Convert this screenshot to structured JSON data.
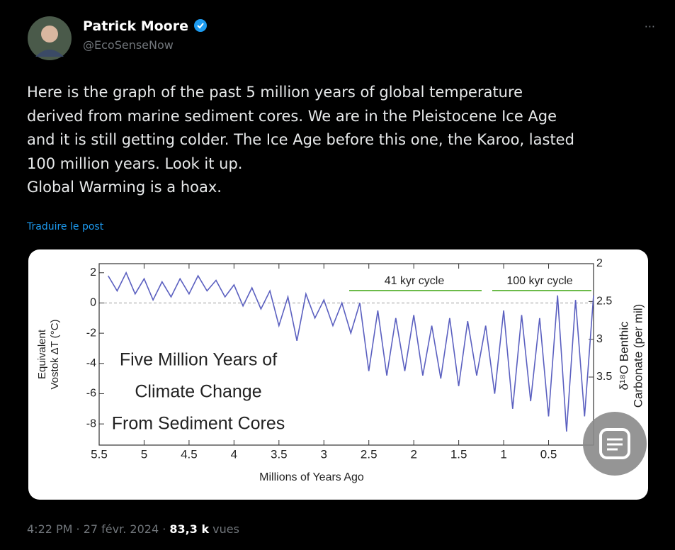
{
  "tweet": {
    "name": "Patrick Moore",
    "handle": "@EcoSenseNow",
    "more": "···",
    "text_lines": [
      "Here is the graph of the past 5 million years of global temperature",
      "derived from marine sediment cores. We are in the Pleistocene Ice Age",
      "and it is still getting colder. The Ice Age before this one, the Karoo, lasted",
      "100 million years. Look it up.",
      "Global Warming is a hoax."
    ],
    "translate": "Traduire le post",
    "timestamp": "4:22 PM · 27 févr. 2024 ·",
    "views": "83,3 k",
    "views_label": "vues"
  },
  "chart_data": {
    "type": "line",
    "title_lines": [
      "Five Million Years of",
      "Climate Change",
      "From Sediment Cores"
    ],
    "xlabel": "Millions of Years Ago",
    "ylabel_lines": [
      "Equivalent",
      "Vostok ΔT (°C)"
    ],
    "y2label_lines": [
      "δ¹⁸O Benthic",
      "Carbonate (per mil)"
    ],
    "annotations": [
      "41 kyr cycle",
      "100 kyr cycle"
    ],
    "color": "#5b60c0",
    "xlim": [
      5.5,
      0
    ],
    "xticks": [
      5.5,
      5,
      4.5,
      4,
      3.5,
      3,
      2.5,
      2,
      1.5,
      1,
      0.5
    ],
    "ylim": [
      -9.4,
      2.6
    ],
    "yticks": [
      2,
      0,
      -2,
      -4,
      -6,
      -8
    ],
    "y2lim": [
      4.4,
      2
    ],
    "y2ticks": [
      2,
      2.5,
      3,
      3.5
    ],
    "x": [
      5.4,
      5.3,
      5.2,
      5.1,
      5.0,
      4.9,
      4.8,
      4.7,
      4.6,
      4.5,
      4.4,
      4.3,
      4.2,
      4.1,
      4.0,
      3.9,
      3.8,
      3.7,
      3.6,
      3.5,
      3.4,
      3.3,
      3.2,
      3.1,
      3.0,
      2.9,
      2.8,
      2.7,
      2.6,
      2.5,
      2.4,
      2.3,
      2.2,
      2.1,
      2.0,
      1.9,
      1.8,
      1.7,
      1.6,
      1.5,
      1.4,
      1.3,
      1.2,
      1.1,
      1.0,
      0.9,
      0.8,
      0.7,
      0.6,
      0.5,
      0.4,
      0.3,
      0.2,
      0.1,
      0.0
    ],
    "values": [
      1.8,
      0.8,
      2.0,
      0.6,
      1.6,
      0.2,
      1.4,
      0.4,
      1.6,
      0.6,
      1.8,
      0.8,
      1.5,
      0.4,
      1.2,
      -0.2,
      1.0,
      -0.4,
      0.8,
      -1.5,
      0.4,
      -2.5,
      0.6,
      -1.0,
      0.2,
      -1.5,
      0.0,
      -2.0,
      0.0,
      -4.5,
      -0.5,
      -4.8,
      -1.0,
      -4.5,
      -0.8,
      -4.8,
      -1.5,
      -5.0,
      -1.0,
      -5.5,
      -1.2,
      -4.8,
      -1.5,
      -6.0,
      -0.5,
      -7.0,
      -0.8,
      -6.5,
      -1.0,
      -7.5,
      0.5,
      -8.5,
      0.2,
      -7.5,
      0.5
    ]
  }
}
